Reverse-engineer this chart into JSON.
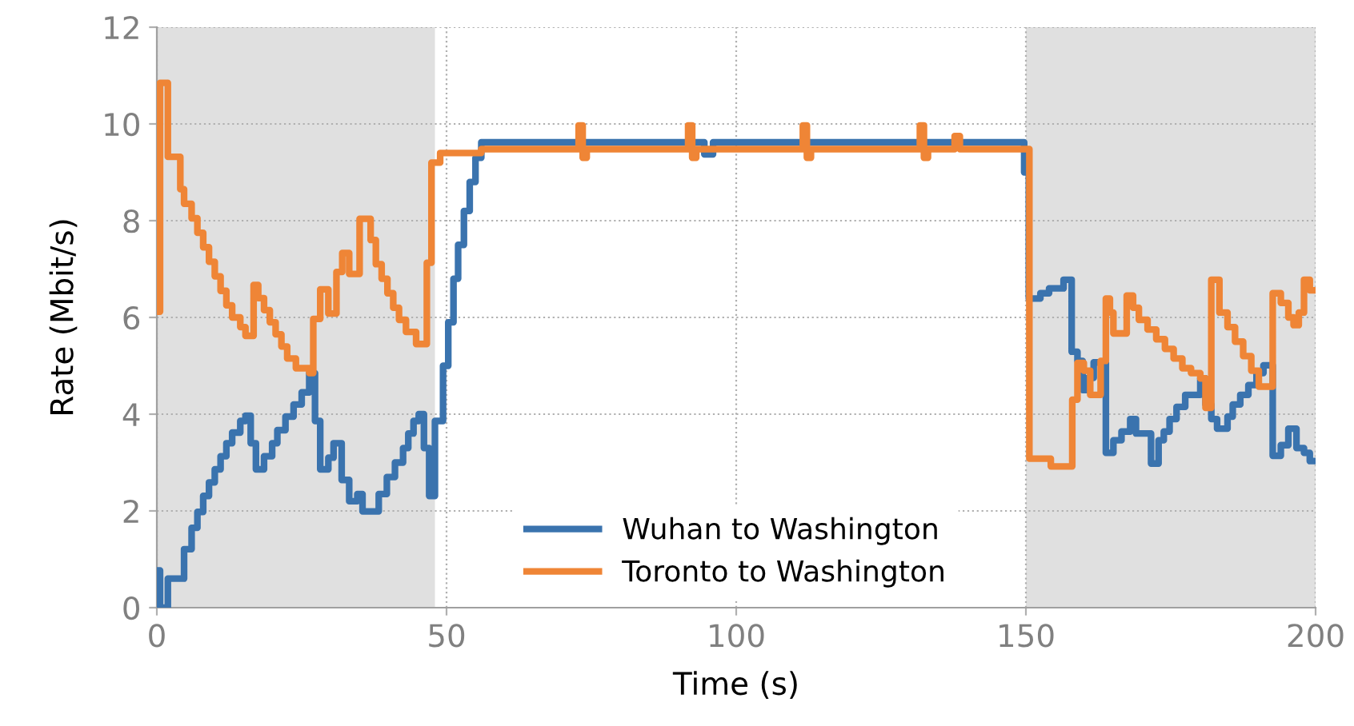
{
  "chart_data": {
    "type": "step",
    "xlabel": "Time (s)",
    "ylabel": "Rate (Mbit/s)",
    "xlim": [
      0,
      200
    ],
    "xticks": [
      0,
      50,
      100,
      150,
      200
    ],
    "ylim": [
      0,
      12
    ],
    "yticks": [
      0,
      2,
      4,
      6,
      8,
      10,
      12
    ],
    "grid": true,
    "legend": "bottom",
    "line_style": "solid",
    "marker": "none",
    "bands": [
      {
        "axis": "x",
        "from": 0,
        "to": 48,
        "color": "#e0e0e0"
      },
      {
        "axis": "x",
        "from": 150,
        "to": 200,
        "color": "#e0e0e0"
      }
    ],
    "series": [
      {
        "name": "Wuhan to Washington",
        "color": "#3a73ae",
        "x": [
          0,
          0.55,
          1.9,
          4.7,
          6,
          7,
          8,
          9,
          10,
          11,
          12,
          13,
          14.4,
          15.3,
          16.2,
          17.1,
          18.5,
          19.9,
          20.8,
          22.2,
          23.6,
          25,
          26.3,
          27.3,
          28.2,
          29.6,
          30.5,
          31.9,
          33.2,
          34.6,
          35.5,
          38.3,
          39.7,
          41.1,
          42.5,
          43.4,
          44.3,
          45.2,
          46.1,
          47,
          48,
          49.4,
          50.3,
          51.2,
          52,
          53,
          54,
          55,
          56,
          94.5,
          96,
          149.7,
          150.5,
          152.5,
          154,
          156.5,
          157.9,
          158.9,
          159.8,
          160.7,
          161.7,
          163.8,
          165.1,
          166.5,
          168,
          169,
          171.6,
          172.9,
          173.8,
          174.8,
          176,
          177.5,
          180.1,
          181,
          182,
          183,
          184.8,
          185.7,
          187,
          188.4,
          189.8,
          191,
          192.6,
          194,
          195.3,
          196.7,
          198,
          199,
          200
        ],
        "values": [
          0.77,
          0.0,
          0.6,
          1.21,
          1.65,
          1.98,
          2.31,
          2.59,
          2.86,
          3.13,
          3.4,
          3.62,
          3.86,
          3.97,
          3.4,
          2.86,
          3.13,
          3.4,
          3.67,
          3.95,
          4.2,
          4.45,
          4.85,
          3.86,
          2.86,
          3.1,
          3.4,
          2.64,
          2.2,
          2.35,
          1.99,
          2.35,
          2.7,
          3.0,
          3.3,
          3.6,
          3.86,
          4.0,
          3.3,
          2.31,
          3.86,
          5.0,
          5.9,
          6.8,
          7.5,
          8.2,
          8.8,
          9.3,
          9.62,
          9.37,
          9.62,
          9.0,
          6.39,
          6.5,
          6.6,
          6.78,
          5.29,
          5.1,
          4.5,
          4.75,
          5.07,
          3.2,
          3.46,
          3.64,
          3.9,
          3.6,
          2.98,
          3.46,
          3.64,
          3.9,
          4.15,
          4.4,
          4.74,
          4.2,
          3.9,
          3.7,
          3.95,
          4.2,
          4.4,
          4.6,
          4.85,
          5.01,
          3.14,
          3.36,
          3.7,
          3.3,
          3.2,
          3.03,
          3.03
        ]
      },
      {
        "name": "Toronto to Washington",
        "color": "#ef8536",
        "x": [
          0,
          0.55,
          1.9,
          4.05,
          4.7,
          6,
          7,
          8,
          9,
          10,
          11,
          12,
          13,
          14.4,
          15.3,
          16.7,
          17.5,
          18.5,
          19.5,
          20.5,
          21.5,
          22.5,
          24,
          26.3,
          27,
          28.2,
          29.6,
          31,
          32,
          33.2,
          35,
          36.9,
          37.8,
          38.8,
          39.8,
          40.8,
          41.8,
          43,
          44.75,
          46.6,
          47.4,
          48.9,
          56,
          72.8,
          73.5,
          74.2,
          91.7,
          92.4,
          93.1,
          111.5,
          112.2,
          112.9,
          131.7,
          132.4,
          133.1,
          137.7,
          138.6,
          150.6,
          154.3,
          158,
          158.9,
          160,
          161.1,
          162.9,
          163.8,
          164.5,
          165.1,
          167.4,
          168.5,
          169.5,
          171,
          172.5,
          174,
          175.5,
          177,
          178.5,
          180.1,
          181,
          182,
          183.4,
          184.8,
          186.1,
          187.5,
          188.9,
          190.2,
          192.6,
          194,
          195.3,
          196.2,
          197.1,
          198,
          199,
          200
        ],
        "values": [
          6.12,
          10.85,
          9.32,
          8.65,
          8.35,
          8.05,
          7.75,
          7.45,
          7.15,
          6.85,
          6.55,
          6.25,
          6.0,
          5.8,
          5.62,
          6.67,
          6.4,
          6.15,
          5.9,
          5.65,
          5.4,
          5.15,
          4.95,
          4.85,
          5.97,
          6.58,
          6.08,
          6.94,
          7.33,
          6.9,
          8.04,
          7.6,
          7.1,
          6.8,
          6.5,
          6.2,
          5.95,
          5.7,
          5.45,
          7.13,
          9.2,
          9.4,
          9.48,
          9.97,
          9.3,
          9.48,
          9.97,
          9.3,
          9.48,
          9.97,
          9.3,
          9.48,
          9.97,
          9.3,
          9.48,
          9.75,
          9.48,
          3.08,
          2.92,
          4.3,
          5.06,
          4.9,
          4.4,
          5.1,
          6.39,
          6.1,
          5.67,
          6.45,
          6.2,
          5.95,
          5.75,
          5.55,
          5.35,
          5.15,
          4.95,
          4.85,
          4.74,
          4.13,
          6.78,
          6.1,
          5.8,
          5.5,
          5.2,
          4.9,
          4.57,
          6.5,
          6.3,
          6.0,
          5.84,
          6.1,
          6.78,
          6.56,
          6.56
        ]
      }
    ]
  }
}
